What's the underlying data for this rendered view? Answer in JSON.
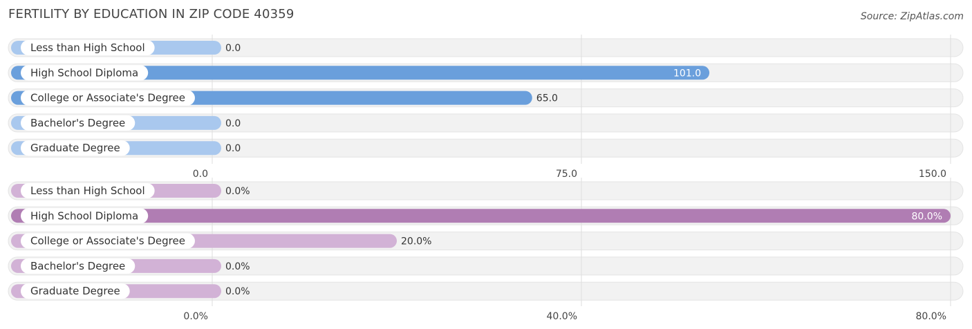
{
  "title": "FERTILITY BY EDUCATION IN ZIP CODE 40359",
  "source": "Source: ZipAtlas.com",
  "chart_data": [
    {
      "type": "bar",
      "orientation": "horizontal",
      "categories": [
        "Less than High School",
        "High School Diploma",
        "College or Associate's Degree",
        "Bachelor's Degree",
        "Graduate Degree"
      ],
      "values": [
        0.0,
        101.0,
        65.0,
        0.0,
        0.0
      ],
      "value_labels": [
        "0.0",
        "101.0",
        "65.0",
        "0.0",
        "0.0"
      ],
      "xlim": [
        0,
        150
      ],
      "ticks": [
        0,
        75,
        150
      ],
      "tick_labels": [
        "0.0",
        "75.0",
        "150.0"
      ],
      "color_strong": "#6a9fdc",
      "color_light": "#a9c8ee",
      "highlight_index": 1
    },
    {
      "type": "bar",
      "orientation": "horizontal",
      "categories": [
        "Less than High School",
        "High School Diploma",
        "College or Associate's Degree",
        "Bachelor's Degree",
        "Graduate Degree"
      ],
      "values": [
        0.0,
        80.0,
        20.0,
        0.0,
        0.0
      ],
      "value_labels": [
        "0.0%",
        "80.0%",
        "20.0%",
        "0.0%",
        "0.0%"
      ],
      "xlim": [
        0,
        80
      ],
      "ticks": [
        0,
        40,
        80
      ],
      "tick_labels": [
        "0.0%",
        "40.0%",
        "80.0%"
      ],
      "color_strong": "#b07db3",
      "color_light": "#d2b2d6",
      "highlight_index": 1
    }
  ]
}
